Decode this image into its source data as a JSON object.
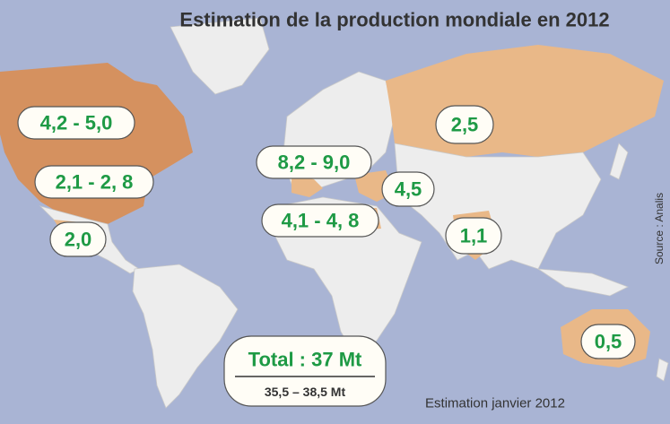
{
  "title": "Estimation de la production mondiale en 2012",
  "regions": [
    {
      "label": "4,2 - 5,0"
    },
    {
      "label": "2,1 - 2, 8"
    },
    {
      "label": "2,0"
    },
    {
      "label": "8,2 - 9,0"
    },
    {
      "label": "4,1 - 4, 8"
    },
    {
      "label": "4,5"
    },
    {
      "label": "2,5"
    },
    {
      "label": "1,1"
    },
    {
      "label": "0,5"
    }
  ],
  "total": {
    "label": "Total : 37 Mt",
    "range": "35,5 – 38,5 Mt"
  },
  "note": "Estimation janvier 2012",
  "source": "Source : Analis"
}
